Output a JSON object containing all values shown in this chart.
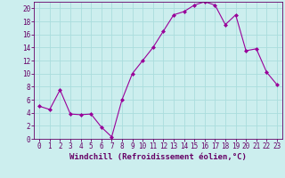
{
  "x": [
    0,
    1,
    2,
    3,
    4,
    5,
    6,
    7,
    8,
    9,
    10,
    11,
    12,
    13,
    14,
    15,
    16,
    17,
    18,
    19,
    20,
    21,
    22,
    23
  ],
  "y": [
    5.0,
    4.5,
    7.5,
    3.8,
    3.7,
    3.8,
    1.8,
    0.3,
    6.0,
    10.0,
    12.0,
    14.0,
    16.5,
    19.0,
    19.5,
    20.5,
    21.0,
    20.5,
    17.5,
    19.0,
    13.5,
    13.8,
    10.2,
    8.3
  ],
  "line_color": "#990099",
  "marker_color": "#990099",
  "bg_color": "#cceeee",
  "grid_color": "#aadddd",
  "xlabel": "Windchill (Refroidissement éolien,°C)",
  "ylabel_values": [
    0,
    2,
    4,
    6,
    8,
    10,
    12,
    14,
    16,
    18,
    20
  ],
  "xlim": [
    -0.5,
    23.5
  ],
  "ylim": [
    0,
    21
  ],
  "axis_color": "#660066",
  "tick_label_color": "#660066",
  "xlabel_color": "#660066",
  "font_size": 5.5,
  "xlabel_font_size": 6.5
}
